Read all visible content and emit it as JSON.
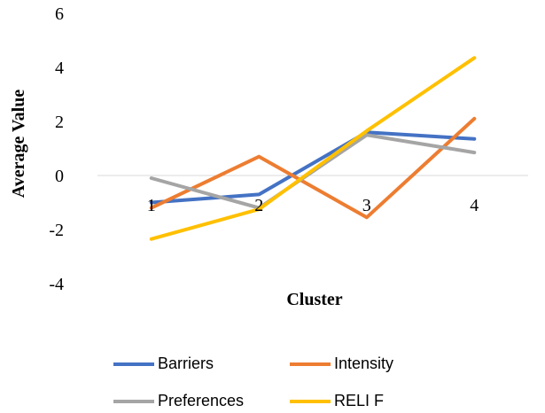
{
  "chart_data": {
    "type": "line",
    "x": [
      1,
      2,
      3,
      4
    ],
    "xlabel": "Cluster",
    "ylabel": "Average Value",
    "ylim": [
      -4,
      6
    ],
    "yticks": [
      "-4",
      "-2",
      "0",
      "2",
      "4",
      "6"
    ],
    "xticks": [
      "1",
      "2",
      "3",
      "4"
    ],
    "grid": "zero-line only",
    "legend_position": "bottom",
    "series": [
      {
        "name": "Barriers",
        "color": "#4472C4",
        "values": [
          -1.0,
          -0.7,
          1.6,
          1.35
        ]
      },
      {
        "name": "Intensity",
        "color": "#ED7D31",
        "values": [
          -1.2,
          0.7,
          -1.55,
          2.1
        ]
      },
      {
        "name": "Preferences",
        "color": "#A5A5A5",
        "values": [
          -0.1,
          -1.2,
          1.5,
          0.85
        ]
      },
      {
        "name": "RELI F",
        "color": "#FFC000",
        "values": [
          -2.35,
          -1.25,
          1.65,
          4.35
        ]
      }
    ]
  }
}
